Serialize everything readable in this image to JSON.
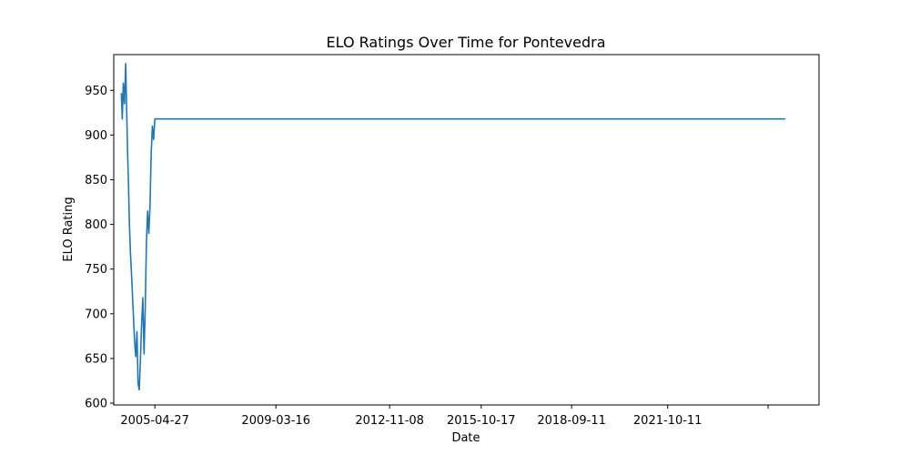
{
  "chart_data": {
    "type": "line",
    "title": "ELO Ratings Over Time for Pontevedra",
    "xlabel": "Date",
    "ylabel": "ELO Rating",
    "ylim": [
      598,
      990
    ],
    "xlim": [
      "2004-01-01",
      "2026-08-20"
    ],
    "grid": false,
    "legend": "none",
    "color": "#1f77b4",
    "xticks": [
      "2005-04-27",
      "2009-03-16",
      "2012-11-08",
      "2015-10-17",
      "2018-09-11",
      "2021-10-11",
      ""
    ],
    "xtick_dates": [
      "2005-04-27",
      "2009-03-16",
      "2012-11-08",
      "2015-10-17",
      "2018-09-11",
      "2021-10-11",
      "2025-01-01"
    ],
    "yticks": [
      600,
      650,
      700,
      750,
      800,
      850,
      900,
      950
    ],
    "series": [
      {
        "x": [
          "2004-03-30",
          "2004-04-10",
          "2004-04-22",
          "2004-05-06",
          "2004-05-20",
          "2004-06-01",
          "2004-06-10",
          "2004-06-22",
          "2004-07-01",
          "2004-07-14",
          "2004-08-01",
          "2004-08-15",
          "2004-09-01",
          "2004-09-15",
          "2004-09-29",
          "2004-10-12",
          "2004-10-26",
          "2004-11-09",
          "2004-11-23",
          "2004-12-07",
          "2004-12-21",
          "2005-01-04",
          "2005-01-18",
          "2005-02-01",
          "2005-02-15",
          "2005-03-01",
          "2005-03-15",
          "2005-03-29",
          "2005-04-12",
          "2005-04-27",
          "2005-05-10",
          "2005-05-24",
          "2005-06-07",
          "2025-07-20"
        ],
        "y": [
          947,
          918,
          958,
          935,
          980,
          925,
          885,
          845,
          805,
          770,
          735,
          705,
          670,
          652,
          680,
          622,
          615,
          650,
          690,
          718,
          655,
          705,
          780,
          815,
          790,
          820,
          880,
          910,
          895,
          918,
          918,
          918,
          918,
          918
        ]
      }
    ]
  }
}
